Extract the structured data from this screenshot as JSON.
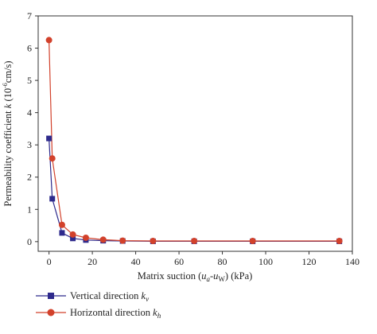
{
  "chart_data": {
    "type": "line",
    "xlabel": {
      "prefix": "Matrix suction (",
      "u1": "u",
      "sub1": "a",
      "dash": "-",
      "u2": "u",
      "sub2": "W",
      "suffix": ") (kPa)"
    },
    "ylabel": {
      "prefix": "Permeability coefficient ",
      "k": "k",
      "mid": " (10",
      "exp": "-6",
      "suffix": "cm/s)"
    },
    "xlim": [
      -5,
      140
    ],
    "ylim": [
      -0.3,
      7
    ],
    "xticks": [
      0,
      20,
      40,
      60,
      80,
      100,
      120,
      140
    ],
    "yticks": [
      0,
      1,
      2,
      3,
      4,
      5,
      6,
      7
    ],
    "legend_placement": "bottom-left",
    "series": [
      {
        "legend_prefix": "Vertical direction ",
        "legend_var": "k",
        "legend_sub": "v",
        "marker": "square",
        "color": "#2e2a8c",
        "x": [
          0,
          1.5,
          6,
          11,
          17,
          25,
          34,
          48,
          67,
          94,
          134
        ],
        "y": [
          3.2,
          1.33,
          0.27,
          0.1,
          0.05,
          0.03,
          0.02,
          0.01,
          0.01,
          0.01,
          0.01
        ]
      },
      {
        "legend_prefix": "Horizontal direction ",
        "legend_var": "k",
        "legend_sub": "h",
        "marker": "circle",
        "color": "#d2412b",
        "x": [
          0,
          1.5,
          6,
          11,
          17,
          25,
          34,
          48,
          67,
          94,
          134
        ],
        "y": [
          6.25,
          2.58,
          0.52,
          0.22,
          0.12,
          0.06,
          0.03,
          0.02,
          0.02,
          0.02,
          0.02
        ]
      }
    ]
  }
}
